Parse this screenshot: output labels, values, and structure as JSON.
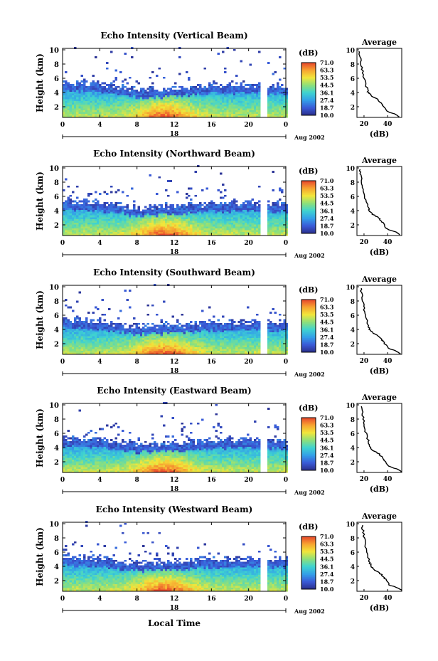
{
  "figure": {
    "xlabel": "Local Time"
  },
  "colorbar": {
    "unit_label": "(dB)",
    "ticks": [
      "71.0",
      "63.3",
      "53.5",
      "44.5",
      "36.1",
      "27.4",
      "18.7",
      "10.0"
    ],
    "colors": [
      "#2b2f8c",
      "#3a5bd8",
      "#33a0e8",
      "#3fd3d0",
      "#8ee07a",
      "#f2e63a",
      "#f7a331",
      "#e8452c"
    ]
  },
  "panels": [
    {
      "title": "Echo Intensity (Vertical Beam)"
    },
    {
      "title": "Echo Intensity (Northward Beam)"
    },
    {
      "title": "Echo Intensity (Southward Beam)"
    },
    {
      "title": "Echo Intensity (Eastward Beam)"
    },
    {
      "title": "Echo Intensity (Westward Beam)"
    }
  ],
  "chart_data": {
    "type": "heatmap",
    "ylabel": "Height (km)",
    "xticks": [
      "0",
      "4",
      "8",
      "12",
      "16",
      "20",
      "0"
    ],
    "yticks": [
      "2",
      "4",
      "6",
      "8",
      "10"
    ],
    "xlim": [
      0,
      24
    ],
    "ylim": [
      0.5,
      10.2
    ],
    "date_tick": "18",
    "date_label": "Aug 2002",
    "color_range_db": [
      10.0,
      71.0
    ],
    "data_gap_hours": [
      21.2,
      22.1
    ],
    "echo_top_km": [
      {
        "x": 0,
        "top": 5.2
      },
      {
        "x": 4,
        "top": 4.9
      },
      {
        "x": 8,
        "top": 4.2
      },
      {
        "x": 12,
        "top": 4.4
      },
      {
        "x": 16,
        "top": 4.8
      },
      {
        "x": 20,
        "top": 4.9
      },
      {
        "x": 24,
        "top": 4.7
      }
    ],
    "average_profile": {
      "title": "Average",
      "xlabel": "(dB)",
      "xticks": [
        "20",
        "40"
      ],
      "yticks": [
        "2",
        "4",
        "6",
        "8",
        "10"
      ],
      "xlim": [
        14,
        52
      ],
      "ylim": [
        0.5,
        10.2
      ],
      "points": [
        {
          "db": 51,
          "h": 0.6
        },
        {
          "db": 47,
          "h": 1.0
        },
        {
          "db": 40,
          "h": 1.4
        },
        {
          "db": 37,
          "h": 2.2
        },
        {
          "db": 35,
          "h": 2.6
        },
        {
          "db": 32,
          "h": 3.1
        },
        {
          "db": 27,
          "h": 3.6
        },
        {
          "db": 25,
          "h": 4.0
        },
        {
          "db": 24,
          "h": 4.4
        },
        {
          "db": 23,
          "h": 5.0
        },
        {
          "db": 21,
          "h": 6.0
        },
        {
          "db": 20,
          "h": 7.0
        },
        {
          "db": 19,
          "h": 8.0
        },
        {
          "db": 18,
          "h": 9.0
        },
        {
          "db": 17,
          "h": 9.8
        }
      ]
    }
  }
}
